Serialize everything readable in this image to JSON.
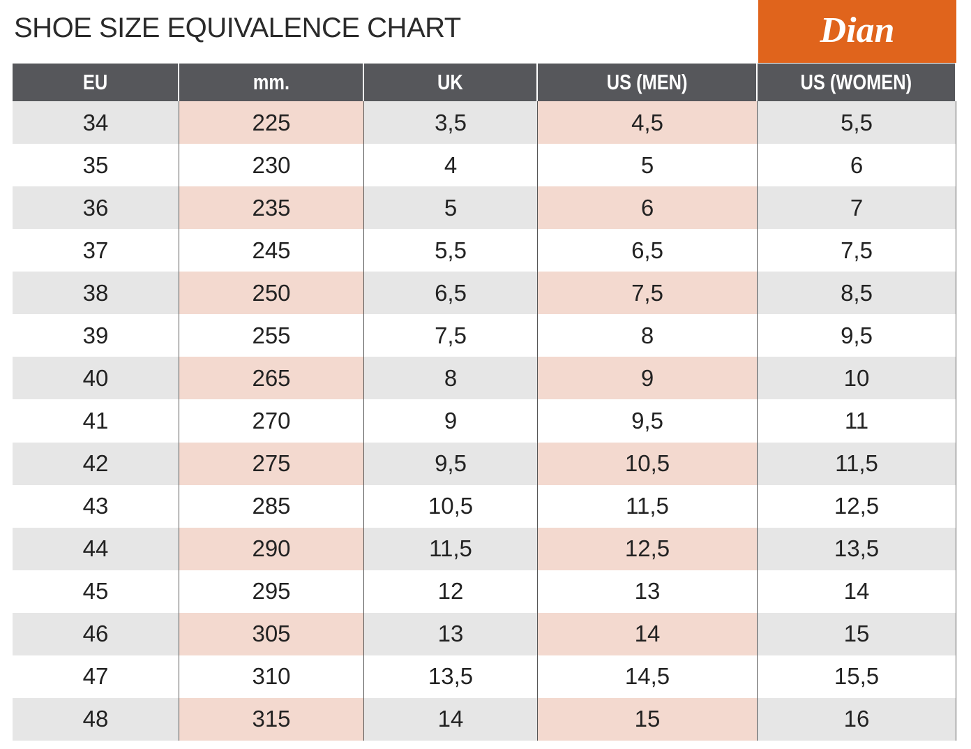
{
  "header": {
    "title": "SHOE SIZE EQUIVALENCE CHART",
    "logo": "Dian"
  },
  "table": {
    "columns": [
      "EU",
      "mm.",
      "UK",
      "US (MEN)",
      "US (WOMEN)"
    ],
    "rows": [
      [
        "34",
        "225",
        "3,5",
        "4,5",
        "5,5"
      ],
      [
        "35",
        "230",
        "4",
        "5",
        "6"
      ],
      [
        "36",
        "235",
        "5",
        "6",
        "7"
      ],
      [
        "37",
        "245",
        "5,5",
        "6,5",
        "7,5"
      ],
      [
        "38",
        "250",
        "6,5",
        "7,5",
        "8,5"
      ],
      [
        "39",
        "255",
        "7,5",
        "8",
        "9,5"
      ],
      [
        "40",
        "265",
        "8",
        "9",
        "10"
      ],
      [
        "41",
        "270",
        "9",
        "9,5",
        "11"
      ],
      [
        "42",
        "275",
        "9,5",
        "10,5",
        "11,5"
      ],
      [
        "43",
        "285",
        "10,5",
        "11,5",
        "12,5"
      ],
      [
        "44",
        "290",
        "11,5",
        "12,5",
        "13,5"
      ],
      [
        "45",
        "295",
        "12",
        "13",
        "14"
      ],
      [
        "46",
        "305",
        "13",
        "14",
        "15"
      ],
      [
        "47",
        "310",
        "13,5",
        "14,5",
        "15,5"
      ],
      [
        "48",
        "315",
        "14",
        "15",
        "16"
      ]
    ]
  }
}
